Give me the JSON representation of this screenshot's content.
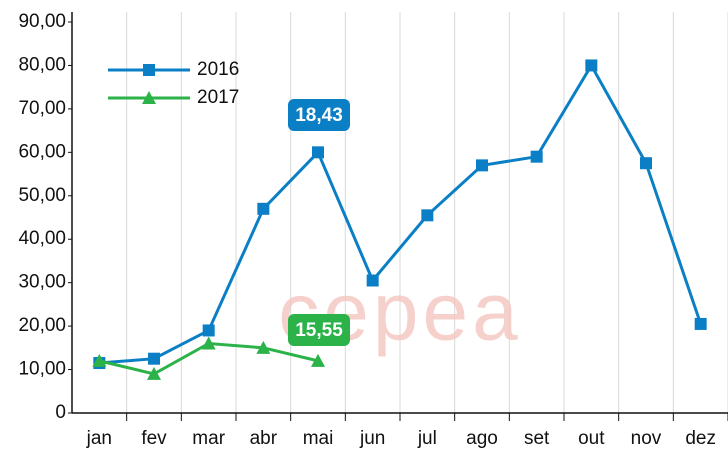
{
  "chart_data": {
    "type": "line",
    "categories": [
      "jan",
      "fev",
      "mar",
      "abr",
      "mai",
      "jun",
      "jul",
      "ago",
      "set",
      "out",
      "nov",
      "dez"
    ],
    "series": [
      {
        "name": "2016",
        "color": "#0a7fc6",
        "marker": "square",
        "values": [
          11.5,
          12.5,
          19,
          47,
          60,
          30.5,
          45.5,
          57,
          59,
          80,
          57.5,
          20.5
        ]
      },
      {
        "name": "2017",
        "color": "#2bb34a",
        "marker": "triangle",
        "values": [
          12,
          9,
          16,
          15,
          12,
          null,
          null,
          null,
          null,
          null,
          null,
          null
        ]
      }
    ],
    "ylim": [
      0,
      90
    ],
    "yticks": [
      0,
      {
        "value": 10,
        "label": "10,00"
      },
      {
        "value": 20,
        "label": "20,00"
      },
      {
        "value": 30,
        "label": "30,00"
      },
      {
        "value": 40,
        "label": "40,00"
      },
      {
        "value": 50,
        "label": "50,00"
      },
      {
        "value": 60,
        "label": "60,00"
      },
      {
        "value": 70,
        "label": "70,00"
      },
      {
        "value": 80,
        "label": "80,00"
      },
      {
        "value": 90,
        "label": "90,00"
      }
    ],
    "annotations": [
      {
        "text": "18,43",
        "color": "#0a7fc6"
      },
      {
        "text": "15,55",
        "color": "#2bb34a"
      }
    ],
    "watermark": "cepea",
    "legend": "upper left"
  }
}
